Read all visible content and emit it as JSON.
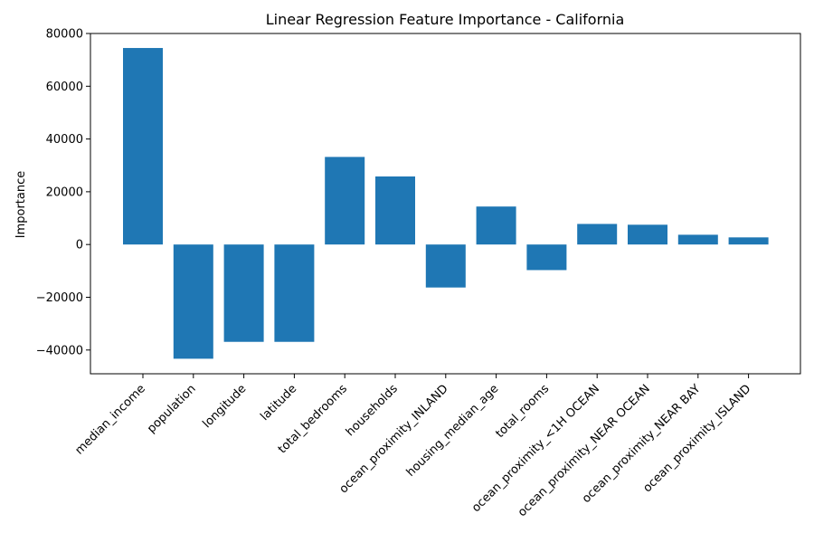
{
  "chart_data": {
    "type": "bar",
    "title": "Linear Regression Feature Importance - California",
    "xlabel": "",
    "ylabel": "Importance",
    "categories": [
      "median_income",
      "population",
      "longitude",
      "latitude",
      "total_bedrooms",
      "households",
      "ocean_proximity_INLAND",
      "housing_median_age",
      "total_rooms",
      "ocean_proximity_<1H OCEAN",
      "ocean_proximity_NEAR OCEAN",
      "ocean_proximity_NEAR BAY",
      "ocean_proximity_ISLAND"
    ],
    "values": [
      74500,
      -43300,
      -36900,
      -36900,
      33200,
      25800,
      -16300,
      14400,
      -9700,
      7800,
      7500,
      3700,
      2700
    ],
    "ylim": [
      -49000,
      80000
    ],
    "yticks": [
      -40000,
      -20000,
      0,
      20000,
      40000,
      60000,
      80000
    ],
    "ytick_labels": [
      "−40000",
      "−20000",
      "0",
      "20000",
      "40000",
      "60000",
      "80000"
    ],
    "bar_color": "#1f77b4",
    "grid": false,
    "legend": "none"
  }
}
